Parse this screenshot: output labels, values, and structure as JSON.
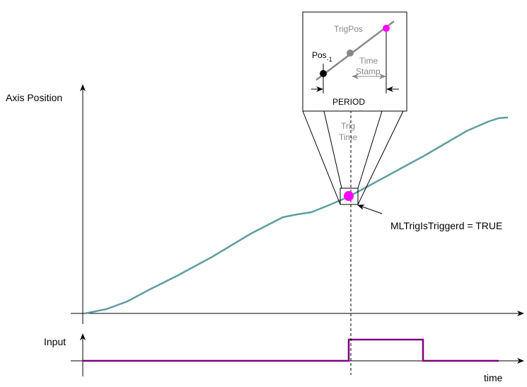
{
  "diagram": {
    "y_axis_label": "Axis Position",
    "input_label": "Input",
    "x_axis_label": "time",
    "trig_pos": "TrigPos",
    "pos_prev": {
      "base": "Pos",
      "subscript": "-1"
    },
    "time_stamp": [
      "Time",
      "Stamp"
    ],
    "period": "PERIOD",
    "trig_time": [
      "Trig",
      "Time"
    ],
    "trigger_note": "MLTrigIsTriggerd = TRUE"
  }
}
